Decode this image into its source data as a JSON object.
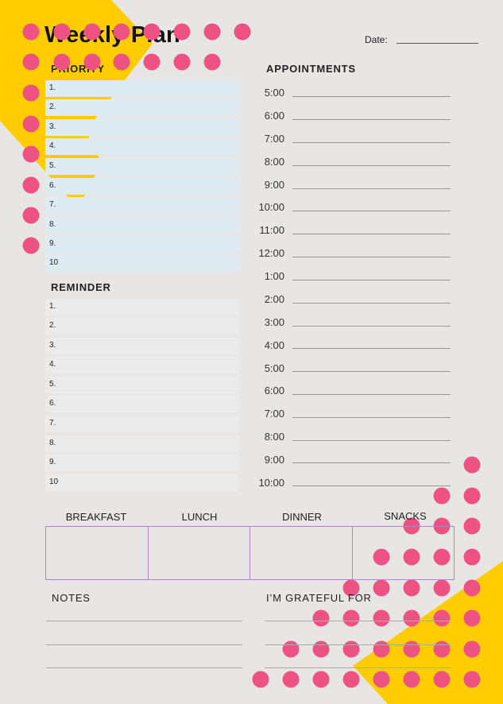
{
  "title": "Weekly Plan",
  "date_label": "Date:",
  "sections": {
    "priority": "PRIORITY",
    "appointments": "APPOINTMENTS",
    "reminder": "REMINDER",
    "notes": "NOTES",
    "grateful": "I’M GRATEFUL FOR"
  },
  "priority_items": [
    "1.",
    "2.",
    "3.",
    "4.",
    "5.",
    "6.",
    "7.",
    "8.",
    "9.",
    "10"
  ],
  "reminder_items": [
    "1.",
    "2.",
    "3.",
    "4.",
    "5.",
    "6.",
    "7.",
    "8.",
    "9.",
    "10"
  ],
  "appointment_times": [
    "5:00",
    "6:00",
    "7:00",
    "8:00",
    "9:00",
    "10:00",
    "11:00",
    "12:00",
    "1:00",
    "2:00",
    "3:00",
    "4:00",
    "5:00",
    "6:00",
    "7:00",
    "8:00",
    "9:00",
    "10:00"
  ],
  "meals": [
    "BREAKFAST",
    "LUNCH",
    "DINNER",
    "SNACKS"
  ],
  "colors": {
    "background": "#e8e5e5",
    "accent_yellow": "#ffcc00",
    "accent_pink": "#ee5283",
    "priority_row": "#deebf3",
    "reminder_row": "#ebebeb",
    "meal_border": "#b07fd8"
  }
}
